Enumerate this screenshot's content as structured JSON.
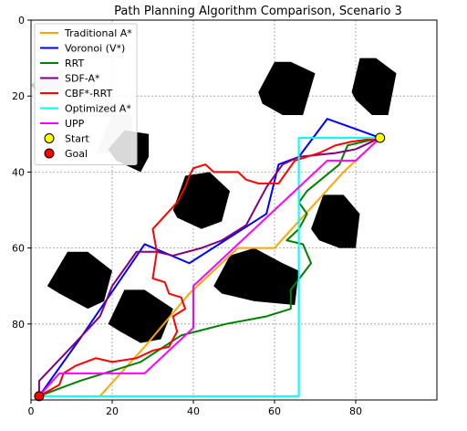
{
  "chart_data": {
    "type": "line",
    "title": "Path Planning Algorithm Comparison, Scenario 3",
    "xlabel": "",
    "ylabel": "",
    "xlim": [
      0,
      100
    ],
    "ylim": [
      100,
      0
    ],
    "y_inverted": true,
    "grid": true,
    "legend_position": "top-left",
    "x_ticks": [
      0,
      20,
      40,
      60,
      80
    ],
    "y_ticks": [
      0,
      20,
      40,
      60,
      80
    ],
    "start": {
      "label": "Start",
      "x": 86,
      "y": 31,
      "color": "#ffff00"
    },
    "goal": {
      "label": "Goal",
      "x": 2,
      "y": 99,
      "color": "#ff0000"
    },
    "obstacles": [
      {
        "color": "#000000",
        "points": [
          [
            56,
            19
          ],
          [
            60,
            11
          ],
          [
            64,
            11
          ],
          [
            70,
            14
          ],
          [
            67,
            25
          ],
          [
            62,
            25
          ],
          [
            57,
            22
          ]
        ]
      },
      {
        "color": "#000000",
        "points": [
          [
            79,
            19
          ],
          [
            81,
            10
          ],
          [
            85,
            10
          ],
          [
            90,
            14
          ],
          [
            88,
            25
          ],
          [
            84,
            25
          ],
          [
            80,
            21
          ]
        ]
      },
      {
        "color": "#cccccc",
        "points": [
          [
            0,
            17
          ],
          [
            4,
            14
          ],
          [
            8,
            13
          ],
          [
            8,
            19
          ],
          [
            2,
            20
          ]
        ]
      },
      {
        "color": "#cccccc",
        "points": [
          [
            16,
            35
          ],
          [
            20,
            25
          ],
          [
            25,
            25
          ],
          [
            25,
            30
          ],
          [
            23,
            35
          ]
        ]
      },
      {
        "color": "#000000",
        "points": [
          [
            19,
            34
          ],
          [
            23,
            29
          ],
          [
            29,
            30
          ],
          [
            29,
            36
          ],
          [
            27,
            40
          ],
          [
            21,
            37
          ]
        ]
      },
      {
        "color": "#000000",
        "points": [
          [
            35,
            50
          ],
          [
            38,
            41
          ],
          [
            44,
            40
          ],
          [
            49,
            45
          ],
          [
            47,
            53
          ],
          [
            42,
            55
          ],
          [
            36,
            52
          ]
        ]
      },
      {
        "color": "#000000",
        "points": [
          [
            69,
            55
          ],
          [
            72,
            46
          ],
          [
            77,
            46
          ],
          [
            81,
            51
          ],
          [
            80,
            60
          ],
          [
            76,
            60
          ],
          [
            71,
            58
          ]
        ]
      },
      {
        "color": "#000000",
        "points": [
          [
            4,
            70
          ],
          [
            9,
            61
          ],
          [
            14,
            61
          ],
          [
            20,
            66
          ],
          [
            18,
            74
          ],
          [
            14,
            76
          ],
          [
            7,
            72
          ]
        ]
      },
      {
        "color": "#000000",
        "points": [
          [
            19,
            80
          ],
          [
            23,
            71
          ],
          [
            28,
            71
          ],
          [
            35,
            76
          ],
          [
            32,
            84
          ],
          [
            27,
            85
          ],
          [
            22,
            82
          ]
        ]
      },
      {
        "color": "#000000",
        "points": [
          [
            45,
            70
          ],
          [
            49,
            62
          ],
          [
            55,
            60
          ],
          [
            62,
            64
          ],
          [
            66,
            66
          ],
          [
            65,
            75
          ],
          [
            55,
            74
          ],
          [
            47,
            72
          ]
        ]
      }
    ],
    "series": [
      {
        "name": "Traditional A*",
        "color": "#ffa500",
        "points": [
          [
            17,
            99
          ],
          [
            28,
            86
          ],
          [
            39,
            72
          ],
          [
            51,
            60
          ],
          [
            60,
            60
          ],
          [
            77,
            40
          ],
          [
            86,
            31
          ]
        ]
      },
      {
        "name": "Voronoi (V*)",
        "color": "#0000ff",
        "points": [
          [
            2,
            99
          ],
          [
            12,
            84
          ],
          [
            28,
            59
          ],
          [
            39,
            64
          ],
          [
            58,
            51
          ],
          [
            61,
            38
          ],
          [
            66,
            36
          ],
          [
            73,
            26
          ],
          [
            86,
            31
          ]
        ]
      },
      {
        "name": "RRT",
        "color": "#008000",
        "points": [
          [
            2,
            99
          ],
          [
            12,
            95
          ],
          [
            27,
            90
          ],
          [
            37,
            83
          ],
          [
            48,
            80
          ],
          [
            58,
            78
          ],
          [
            64,
            76
          ],
          [
            64,
            71
          ],
          [
            69,
            64
          ],
          [
            67,
            59
          ],
          [
            63,
            58
          ],
          [
            66,
            55
          ],
          [
            68,
            51
          ],
          [
            66,
            48
          ],
          [
            68,
            45
          ],
          [
            76,
            38
          ],
          [
            78,
            33
          ],
          [
            86,
            31
          ]
        ]
      },
      {
        "name": "SDF-A*",
        "color": "#800080",
        "points": [
          [
            2,
            99
          ],
          [
            2,
            95
          ],
          [
            10,
            86
          ],
          [
            17,
            78
          ],
          [
            20,
            70
          ],
          [
            26,
            61
          ],
          [
            31,
            61
          ],
          [
            35,
            62
          ],
          [
            42,
            60
          ],
          [
            47,
            58
          ],
          [
            53,
            54
          ],
          [
            56,
            48
          ],
          [
            58,
            44
          ],
          [
            62,
            38
          ],
          [
            66,
            36
          ],
          [
            75,
            35
          ],
          [
            80,
            34
          ],
          [
            86,
            31
          ]
        ]
      },
      {
        "name": "CBF*-RRT",
        "color": "#ff0000",
        "points": [
          [
            2,
            99
          ],
          [
            7,
            96
          ],
          [
            8,
            93
          ],
          [
            11,
            91
          ],
          [
            16,
            89
          ],
          [
            20,
            90
          ],
          [
            26,
            89
          ],
          [
            30,
            87
          ],
          [
            34,
            86
          ],
          [
            36,
            82
          ],
          [
            35,
            78
          ],
          [
            38,
            76
          ],
          [
            37,
            73
          ],
          [
            34,
            72
          ],
          [
            33,
            69
          ],
          [
            30,
            68
          ],
          [
            31,
            61
          ],
          [
            30,
            55
          ],
          [
            36,
            48
          ],
          [
            38,
            44
          ],
          [
            39,
            41
          ],
          [
            40,
            39
          ],
          [
            43,
            38
          ],
          [
            45,
            40
          ],
          [
            51,
            40
          ],
          [
            53,
            42
          ],
          [
            56,
            43
          ],
          [
            61,
            43
          ],
          [
            65,
            37
          ],
          [
            71,
            35
          ],
          [
            75,
            33
          ],
          [
            79,
            32
          ],
          [
            86,
            31
          ]
        ]
      },
      {
        "name": "Optimized A*",
        "color": "#00ffff",
        "points": [
          [
            2,
            99
          ],
          [
            66,
            99
          ],
          [
            66,
            31
          ],
          [
            86,
            31
          ]
        ]
      },
      {
        "name": "UPP",
        "color": "#ff00ff",
        "points": [
          [
            2,
            99
          ],
          [
            7,
            93
          ],
          [
            28,
            93
          ],
          [
            40,
            81
          ],
          [
            40,
            70
          ],
          [
            52,
            58
          ],
          [
            64,
            46
          ],
          [
            73,
            37
          ],
          [
            80,
            37
          ],
          [
            86,
            31
          ]
        ]
      }
    ]
  }
}
